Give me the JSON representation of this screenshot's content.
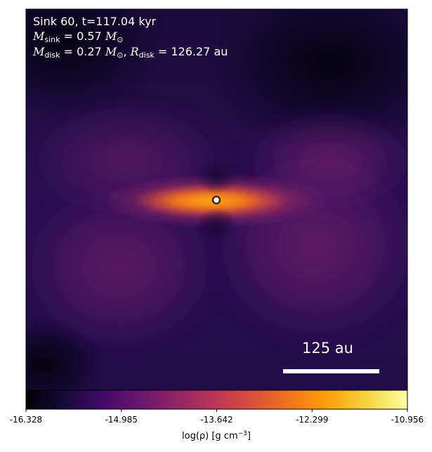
{
  "chart_data": {
    "type": "heatmap",
    "title_lines": {
      "line1": "Sink 60, t=117.04 kyr",
      "m_sink_symbol": "M",
      "m_sink_sub": "sink",
      "m_sink_value": " = 0.57 ",
      "m_sink_unit": "M",
      "m_sink_unit_sub": "⊙",
      "m_disk_symbol": "M",
      "m_disk_sub": "disk",
      "m_disk_value": " = 0.27 ",
      "m_disk_unit": "M",
      "m_disk_unit_sub": "⊙",
      "r_disk_sep": ", ",
      "r_disk_symbol": "R",
      "r_disk_sub": "disk",
      "r_disk_value": " = 126.27 au"
    },
    "sink": {
      "name": "Sink 60",
      "time_kyr": 117.04,
      "mass_msun": 0.57
    },
    "disk": {
      "mass_msun": 0.27,
      "radius_au": 126.27
    },
    "scale_bar": {
      "label": "125 au",
      "length_au": 125
    },
    "colorbar": {
      "label_main": "log(ρ) [g cm",
      "label_exp": "−3",
      "label_end": "]",
      "min": -16.328,
      "max": -10.956,
      "ticks": [
        "-16.328",
        "-14.985",
        "-13.642",
        "-12.299",
        "-10.956"
      ],
      "tick_values": [
        -16.328,
        -14.985,
        -13.642,
        -12.299,
        -10.956
      ],
      "colormap": "inferno"
    },
    "colors": {
      "background_dark": "#0b0620",
      "disk_peak": "#f8961e",
      "sink_marker_face": "#ffffff",
      "sink_marker_edge": "#3b2a1a"
    }
  }
}
